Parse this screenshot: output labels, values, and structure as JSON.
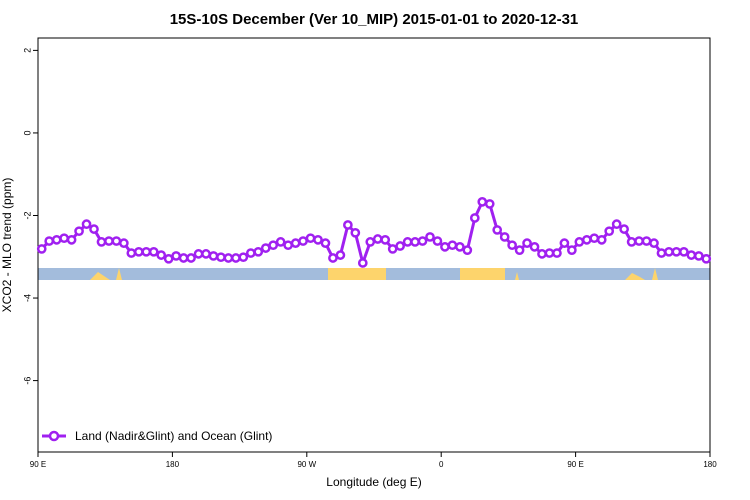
{
  "chart_data": {
    "type": "line",
    "title": "15S-10S December (Ver 10_MIP)   2015-01-01 to 2020-12-31",
    "x_label": "Longitude (deg E)",
    "y_label": "XCO2 - MLO trend (ppm)",
    "xlim": [
      90,
      540
    ],
    "ylim": [
      -7.73,
      2.3
    ],
    "xticks": [
      {
        "value": 90,
        "label": "90 E"
      },
      180,
      {
        "value": 270,
        "label": "90 W"
      },
      {
        "value": 360,
        "label": "0"
      },
      {
        "value": 450,
        "label": "90 E"
      },
      {
        "value": 540,
        "label": "180"
      }
    ],
    "yticks": [
      2,
      0,
      -2,
      -4,
      -6
    ],
    "legend": "bottom-left",
    "x": [
      92.5,
      97.5,
      102.5,
      107.5,
      112.5,
      117.5,
      122.5,
      127.5,
      132.5,
      137.5,
      142.5,
      147.5,
      152.5,
      157.5,
      162.5,
      167.5,
      172.5,
      177.5,
      182.5,
      187.5,
      192.5,
      197.5,
      202.5,
      207.5,
      212.5,
      217.5,
      222.5,
      227.5,
      232.5,
      237.5,
      242.5,
      247.5,
      252.5,
      257.5,
      262.5,
      267.5,
      272.5,
      277.5,
      282.5,
      287.5,
      292.5,
      297.5,
      302.5,
      307.5,
      312.5,
      317.5,
      322.5,
      327.5,
      332.5,
      337.5,
      342.5,
      347.5,
      352.5,
      357.5,
      362.5,
      367.5,
      372.5,
      377.5,
      382.5,
      387.5,
      392.5,
      397.5,
      402.5,
      407.5,
      412.5,
      417.5,
      422.5,
      427.5,
      432.5,
      437.5,
      442.5,
      447.5,
      452.5,
      457.5,
      462.5,
      467.5,
      472.5,
      477.5,
      482.5,
      487.5,
      492.5,
      497.5,
      502.5,
      507.5,
      512.5,
      517.5,
      522.5,
      527.5,
      532.5,
      537.5
    ],
    "series": [
      {
        "name": "Land (Nadir&Glint) and Ocean (Glint)",
        "color": "#a020f0",
        "values": [
          -2.81,
          -2.62,
          -2.59,
          -2.55,
          -2.59,
          -2.38,
          -2.21,
          -2.33,
          -2.64,
          -2.62,
          -2.62,
          -2.67,
          -2.91,
          -2.88,
          -2.88,
          -2.88,
          -2.96,
          -3.05,
          -2.98,
          -3.03,
          -3.03,
          -2.93,
          -2.93,
          -2.98,
          -3.01,
          -3.03,
          -3.03,
          -3.01,
          -2.91,
          -2.88,
          -2.79,
          -2.72,
          -2.64,
          -2.72,
          -2.67,
          -2.62,
          -2.55,
          -2.59,
          -2.67,
          -3.03,
          -2.96,
          -2.23,
          -2.42,
          -3.15,
          -2.64,
          -2.57,
          -2.59,
          -2.81,
          -2.74,
          -2.64,
          -2.64,
          -2.62,
          -2.52,
          -2.62,
          -2.76,
          -2.72,
          -2.76,
          -2.84,
          -2.06,
          -1.67,
          -1.72,
          -2.35,
          -2.52,
          -2.72,
          -2.84,
          -2.67,
          -2.76,
          -2.93,
          -2.91,
          -2.91,
          -2.67,
          -2.84,
          -2.64,
          -2.59,
          -2.55,
          -2.59,
          -2.38,
          -2.21,
          -2.33,
          -2.64,
          -2.62,
          -2.62,
          -2.67,
          -2.91,
          -2.88,
          -2.88,
          -2.88,
          -2.96,
          -2.98,
          -3.05
        ]
      }
    ]
  }
}
